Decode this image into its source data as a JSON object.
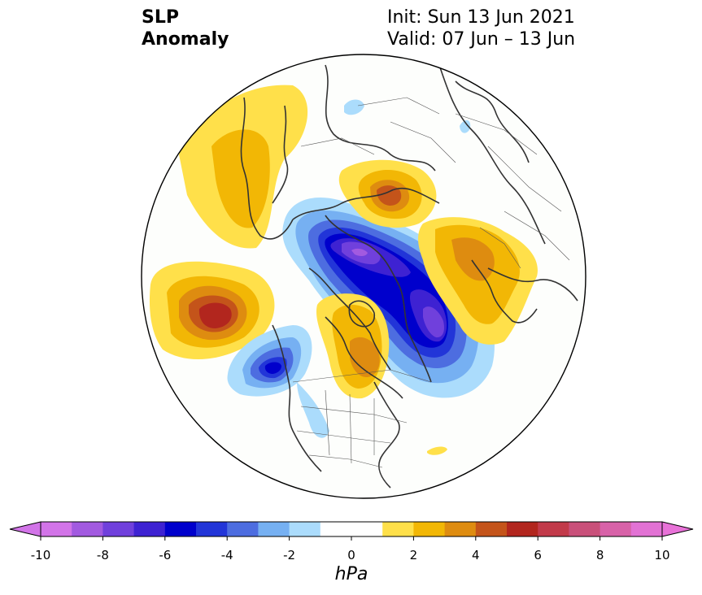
{
  "title": {
    "line1": "SLP",
    "line2": "Anomaly"
  },
  "init_label": "Init: Sun 13 Jun 2021",
  "valid_label": "Valid: 07 Jun – 13 Jun",
  "colorbar": {
    "units": "hPa",
    "ticks": [
      "-10",
      "-8",
      "-6",
      "-4",
      "-2",
      "0",
      "2",
      "4",
      "6",
      "8",
      "10"
    ],
    "colors": [
      "#d274e8",
      "#a25ae0",
      "#7040dc",
      "#3e22d2",
      "#0000cc",
      "#2235d8",
      "#4d6de0",
      "#76b0f2",
      "#abdcfc",
      "#ffffff",
      "#ffffff",
      "#ffe04a",
      "#f2b705",
      "#de8c10",
      "#c4541a",
      "#b2261e",
      "#c23a4a",
      "#c9507a",
      "#d862a8",
      "#e272d4"
    ],
    "extend_low": "#d274e8",
    "extend_high": "#e872d8"
  }
}
